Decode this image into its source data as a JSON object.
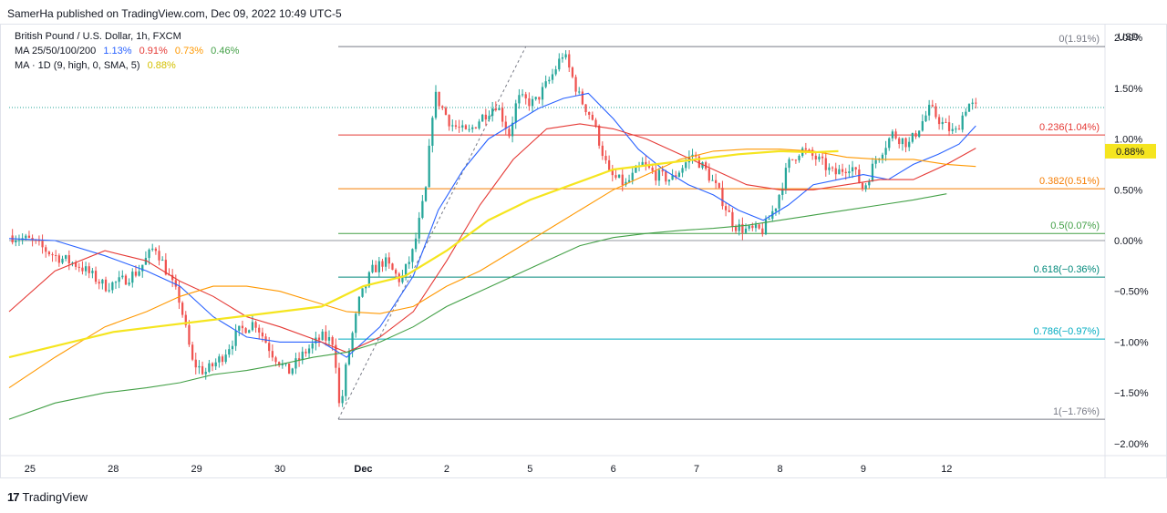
{
  "publisher": "SamerHa published on TradingView.com, Dec 09, 2022 10:49 UTC-5",
  "footer": {
    "brand": "TradingView",
    "logo_text": "17"
  },
  "colors": {
    "up": "#26a69a",
    "down": "#ef5350",
    "ma25": "#2962ff",
    "ma50": "#e53935",
    "ma100": "#ff9800",
    "ma200": "#43a047",
    "ma1d": "#f5e51f",
    "axis_text": "#131722"
  },
  "legend": {
    "symbol": "British Pound / U.S. Dollar, 1h, FXCM",
    "ma_label": "MA 25/50/100/200",
    "ma25_val": "1.13%",
    "ma50_val": "0.91%",
    "ma100_val": "0.73%",
    "ma200_val": "0.46%",
    "ma1d_label": "MA · 1D (9, high, 0, SMA, 5)",
    "ma1d_val": "0.88%"
  },
  "chart_data": {
    "type": "candlestick",
    "title": "British Pound / U.S. Dollar, 1h, FXCM",
    "ylabel": "USD",
    "y_unit": "%",
    "ylim": [
      -2.1,
      2.1
    ],
    "xlim": [
      -0.25,
      12.9
    ],
    "yticks": [
      {
        "value": 2.0,
        "label": "2.00%"
      },
      {
        "value": 1.5,
        "label": "1.50%"
      },
      {
        "value": 1.0,
        "label": "1.00%"
      },
      {
        "value": 0.5,
        "label": "0.50%"
      },
      {
        "value": 0.0,
        "label": "0.00%"
      },
      {
        "value": -0.5,
        "label": "−0.50%"
      },
      {
        "value": -1.0,
        "label": "−1.00%"
      },
      {
        "value": -1.5,
        "label": "−1.50%"
      },
      {
        "value": -2.0,
        "label": "−2.00%"
      }
    ],
    "xticks": [
      {
        "value": 0,
        "label": "25"
      },
      {
        "value": 1,
        "label": "28"
      },
      {
        "value": 2,
        "label": "29"
      },
      {
        "value": 3,
        "label": "30"
      },
      {
        "value": 4,
        "label": "Dec",
        "bold": true
      },
      {
        "value": 5,
        "label": "2"
      },
      {
        "value": 6,
        "label": "5"
      },
      {
        "value": 7,
        "label": "6"
      },
      {
        "value": 8,
        "label": "7"
      },
      {
        "value": 9,
        "label": "8"
      },
      {
        "value": 10,
        "label": "9"
      },
      {
        "value": 11,
        "label": "12"
      }
    ],
    "fibonacci": {
      "x_start": 3.7,
      "levels": [
        {
          "level": "0",
          "value": 1.91,
          "label": "0(1.91%)",
          "color": "#787b86"
        },
        {
          "level": "0.236",
          "value": 1.04,
          "label": "0.236(1.04%)",
          "color": "#e53935"
        },
        {
          "level": "0.382",
          "value": 0.51,
          "label": "0.382(0.51%)",
          "color": "#f57c00"
        },
        {
          "level": "0.5",
          "value": 0.07,
          "label": "0.5(0.07%)",
          "color": "#43a047"
        },
        {
          "level": "0.618",
          "value": -0.36,
          "label": "0.618(−0.36%)",
          "color": "#00897b"
        },
        {
          "level": "0.786",
          "value": -0.97,
          "label": "0.786(−0.97%)",
          "color": "#00acc1"
        },
        {
          "level": "1",
          "value": -1.76,
          "label": "1(−1.76%)",
          "color": "#787b86"
        }
      ],
      "trendline": {
        "from": [
          3.7,
          -1.76
        ],
        "to": [
          5.95,
          1.91
        ]
      }
    },
    "baseline": 0.0,
    "last_price_line": 1.31,
    "price_badge": {
      "value": 0.88,
      "label": "0.88%"
    },
    "price_path": [
      [
        -0.25,
        0.05
      ],
      [
        0.0,
        0.0
      ],
      [
        0.3,
        -0.15
      ],
      [
        0.6,
        -0.25
      ],
      [
        0.9,
        -0.45
      ],
      [
        1.1,
        -0.4
      ],
      [
        1.3,
        -0.3
      ],
      [
        1.5,
        -0.05
      ],
      [
        1.8,
        -0.6
      ],
      [
        1.95,
        -1.2
      ],
      [
        2.1,
        -1.3
      ],
      [
        2.3,
        -1.15
      ],
      [
        2.5,
        -0.9
      ],
      [
        2.7,
        -0.8
      ],
      [
        2.9,
        -1.1
      ],
      [
        3.1,
        -1.3
      ],
      [
        3.3,
        -1.1
      ],
      [
        3.5,
        -0.95
      ],
      [
        3.65,
        -1.0
      ],
      [
        3.72,
        -1.72
      ],
      [
        3.8,
        -1.2
      ],
      [
        3.95,
        -0.6
      ],
      [
        4.1,
        -0.3
      ],
      [
        4.25,
        -0.2
      ],
      [
        4.45,
        -0.4
      ],
      [
        4.6,
        -0.1
      ],
      [
        4.75,
        0.5
      ],
      [
        4.85,
        1.45
      ],
      [
        5.05,
        1.15
      ],
      [
        5.25,
        1.05
      ],
      [
        5.4,
        1.2
      ],
      [
        5.6,
        1.35
      ],
      [
        5.75,
        1.05
      ],
      [
        5.85,
        1.4
      ],
      [
        6.05,
        1.35
      ],
      [
        6.25,
        1.6
      ],
      [
        6.4,
        1.85
      ],
      [
        6.6,
        1.4
      ],
      [
        6.75,
        1.2
      ],
      [
        6.95,
        0.65
      ],
      [
        7.15,
        0.55
      ],
      [
        7.35,
        0.75
      ],
      [
        7.5,
        0.65
      ],
      [
        7.7,
        0.6
      ],
      [
        7.95,
        0.85
      ],
      [
        8.1,
        0.7
      ],
      [
        8.25,
        0.5
      ],
      [
        8.45,
        0.15
      ],
      [
        8.6,
        0.1
      ],
      [
        8.8,
        0.1
      ],
      [
        8.95,
        0.35
      ],
      [
        9.1,
        0.75
      ],
      [
        9.25,
        0.9
      ],
      [
        9.45,
        0.8
      ],
      [
        9.65,
        0.65
      ],
      [
        9.85,
        0.75
      ],
      [
        10.0,
        0.5
      ],
      [
        10.15,
        0.8
      ],
      [
        10.35,
        1.05
      ],
      [
        10.55,
        0.95
      ],
      [
        10.8,
        1.3
      ],
      [
        10.95,
        1.15
      ],
      [
        11.1,
        1.05
      ],
      [
        11.25,
        1.35
      ],
      [
        11.35,
        1.31
      ]
    ],
    "series": [
      {
        "name": "MA 25",
        "color": "#2962ff",
        "last": "1.13%",
        "points": [
          [
            -0.25,
            0.02
          ],
          [
            0.3,
            0.0
          ],
          [
            0.9,
            -0.15
          ],
          [
            1.4,
            -0.3
          ],
          [
            1.8,
            -0.45
          ],
          [
            2.2,
            -0.75
          ],
          [
            2.6,
            -0.95
          ],
          [
            3.0,
            -1.0
          ],
          [
            3.5,
            -1.0
          ],
          [
            3.8,
            -1.15
          ],
          [
            4.2,
            -0.85
          ],
          [
            4.6,
            -0.35
          ],
          [
            4.9,
            0.3
          ],
          [
            5.2,
            0.7
          ],
          [
            5.5,
            1.0
          ],
          [
            5.8,
            1.15
          ],
          [
            6.1,
            1.3
          ],
          [
            6.4,
            1.4
          ],
          [
            6.7,
            1.45
          ],
          [
            7.0,
            1.2
          ],
          [
            7.3,
            0.9
          ],
          [
            7.6,
            0.7
          ],
          [
            7.9,
            0.55
          ],
          [
            8.2,
            0.45
          ],
          [
            8.5,
            0.3
          ],
          [
            8.8,
            0.2
          ],
          [
            9.1,
            0.35
          ],
          [
            9.4,
            0.55
          ],
          [
            9.7,
            0.6
          ],
          [
            10.0,
            0.65
          ],
          [
            10.3,
            0.6
          ],
          [
            10.6,
            0.75
          ],
          [
            10.9,
            0.85
          ],
          [
            11.15,
            0.95
          ],
          [
            11.35,
            1.13
          ]
        ]
      },
      {
        "name": "MA 50",
        "color": "#e53935",
        "last": "0.91%",
        "points": [
          [
            -0.25,
            -0.7
          ],
          [
            0.3,
            -0.3
          ],
          [
            0.9,
            -0.1
          ],
          [
            1.4,
            -0.2
          ],
          [
            1.8,
            -0.4
          ],
          [
            2.2,
            -0.55
          ],
          [
            2.6,
            -0.75
          ],
          [
            3.0,
            -0.85
          ],
          [
            3.5,
            -1.0
          ],
          [
            3.8,
            -1.1
          ],
          [
            4.2,
            -0.95
          ],
          [
            4.6,
            -0.7
          ],
          [
            5.0,
            -0.2
          ],
          [
            5.4,
            0.35
          ],
          [
            5.8,
            0.8
          ],
          [
            6.2,
            1.1
          ],
          [
            6.6,
            1.15
          ],
          [
            7.0,
            1.1
          ],
          [
            7.4,
            1.0
          ],
          [
            7.8,
            0.85
          ],
          [
            8.2,
            0.7
          ],
          [
            8.6,
            0.55
          ],
          [
            9.0,
            0.5
          ],
          [
            9.4,
            0.5
          ],
          [
            9.8,
            0.55
          ],
          [
            10.2,
            0.6
          ],
          [
            10.6,
            0.6
          ],
          [
            11.0,
            0.75
          ],
          [
            11.35,
            0.91
          ]
        ]
      },
      {
        "name": "MA 100",
        "color": "#ff9800",
        "last": "0.73%",
        "points": [
          [
            -0.25,
            -1.45
          ],
          [
            0.3,
            -1.15
          ],
          [
            0.9,
            -0.85
          ],
          [
            1.4,
            -0.7
          ],
          [
            1.8,
            -0.55
          ],
          [
            2.2,
            -0.45
          ],
          [
            2.6,
            -0.45
          ],
          [
            3.0,
            -0.5
          ],
          [
            3.4,
            -0.6
          ],
          [
            3.8,
            -0.7
          ],
          [
            4.2,
            -0.72
          ],
          [
            4.6,
            -0.65
          ],
          [
            5.0,
            -0.45
          ],
          [
            5.4,
            -0.3
          ],
          [
            5.8,
            -0.1
          ],
          [
            6.2,
            0.1
          ],
          [
            6.6,
            0.3
          ],
          [
            7.0,
            0.5
          ],
          [
            7.4,
            0.65
          ],
          [
            7.8,
            0.8
          ],
          [
            8.2,
            0.88
          ],
          [
            8.6,
            0.9
          ],
          [
            9.0,
            0.9
          ],
          [
            9.4,
            0.88
          ],
          [
            9.8,
            0.82
          ],
          [
            10.2,
            0.8
          ],
          [
            10.6,
            0.8
          ],
          [
            11.0,
            0.75
          ],
          [
            11.35,
            0.73
          ]
        ]
      },
      {
        "name": "MA 200",
        "color": "#43a047",
        "last": "0.46%",
        "points": [
          [
            -0.25,
            -1.76
          ],
          [
            0.3,
            -1.6
          ],
          [
            0.9,
            -1.5
          ],
          [
            1.4,
            -1.45
          ],
          [
            1.8,
            -1.4
          ],
          [
            2.2,
            -1.32
          ],
          [
            2.6,
            -1.28
          ],
          [
            3.0,
            -1.22
          ],
          [
            3.4,
            -1.15
          ],
          [
            3.8,
            -1.1
          ],
          [
            4.2,
            -1.0
          ],
          [
            4.6,
            -0.85
          ],
          [
            5.0,
            -0.65
          ],
          [
            5.4,
            -0.5
          ],
          [
            5.8,
            -0.35
          ],
          [
            6.2,
            -0.2
          ],
          [
            6.6,
            -0.05
          ],
          [
            7.0,
            0.03
          ],
          [
            7.4,
            0.07
          ],
          [
            7.8,
            0.1
          ],
          [
            8.2,
            0.12
          ],
          [
            8.6,
            0.15
          ],
          [
            9.0,
            0.2
          ],
          [
            9.4,
            0.25
          ],
          [
            9.8,
            0.3
          ],
          [
            10.2,
            0.35
          ],
          [
            10.6,
            0.4
          ],
          [
            11.0,
            0.46
          ]
        ]
      },
      {
        "name": "MA 1D (9, high, 0, SMA, 5)",
        "color": "#f5e51f",
        "last": "0.88%",
        "width": 2.2,
        "points": [
          [
            -0.25,
            -1.15
          ],
          [
            0.5,
            -1.0
          ],
          [
            1.0,
            -0.9
          ],
          [
            1.5,
            -0.85
          ],
          [
            2.0,
            -0.8
          ],
          [
            2.5,
            -0.75
          ],
          [
            3.0,
            -0.7
          ],
          [
            3.5,
            -0.65
          ],
          [
            4.0,
            -0.45
          ],
          [
            4.5,
            -0.35
          ],
          [
            5.0,
            -0.1
          ],
          [
            5.5,
            0.2
          ],
          [
            6.0,
            0.4
          ],
          [
            6.5,
            0.55
          ],
          [
            7.0,
            0.7
          ],
          [
            7.5,
            0.75
          ],
          [
            8.0,
            0.8
          ],
          [
            8.5,
            0.85
          ],
          [
            9.0,
            0.88
          ],
          [
            9.4,
            0.87
          ],
          [
            9.7,
            0.88
          ]
        ]
      }
    ]
  }
}
